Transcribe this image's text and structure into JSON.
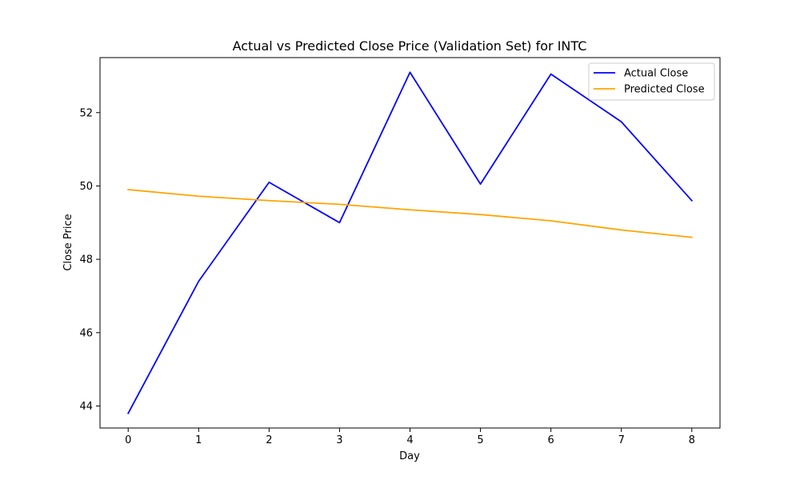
{
  "chart_data": {
    "type": "line",
    "title": "Actual vs Predicted Close Price (Validation Set) for INTC",
    "xlabel": "Day",
    "ylabel": "Close Price",
    "x": [
      0,
      1,
      2,
      3,
      4,
      5,
      6,
      7,
      8
    ],
    "x_ticks": [
      "0",
      "1",
      "2",
      "3",
      "4",
      "5",
      "6",
      "7",
      "8"
    ],
    "y_ticks": [
      "44",
      "46",
      "48",
      "50",
      "52"
    ],
    "xlim": [
      -0.4,
      8.4
    ],
    "ylim": [
      43.4,
      53.5
    ],
    "grid": false,
    "legend_position": "top-right",
    "series": [
      {
        "name": "Actual Close",
        "color": "#0000ff",
        "values": [
          43.8,
          47.4,
          50.1,
          49.0,
          53.1,
          50.05,
          53.05,
          51.75,
          49.6
        ]
      },
      {
        "name": "Predicted Close",
        "color": "#ffa500",
        "values": [
          49.9,
          49.72,
          49.6,
          49.5,
          49.35,
          49.22,
          49.05,
          48.8,
          48.6
        ]
      }
    ]
  }
}
